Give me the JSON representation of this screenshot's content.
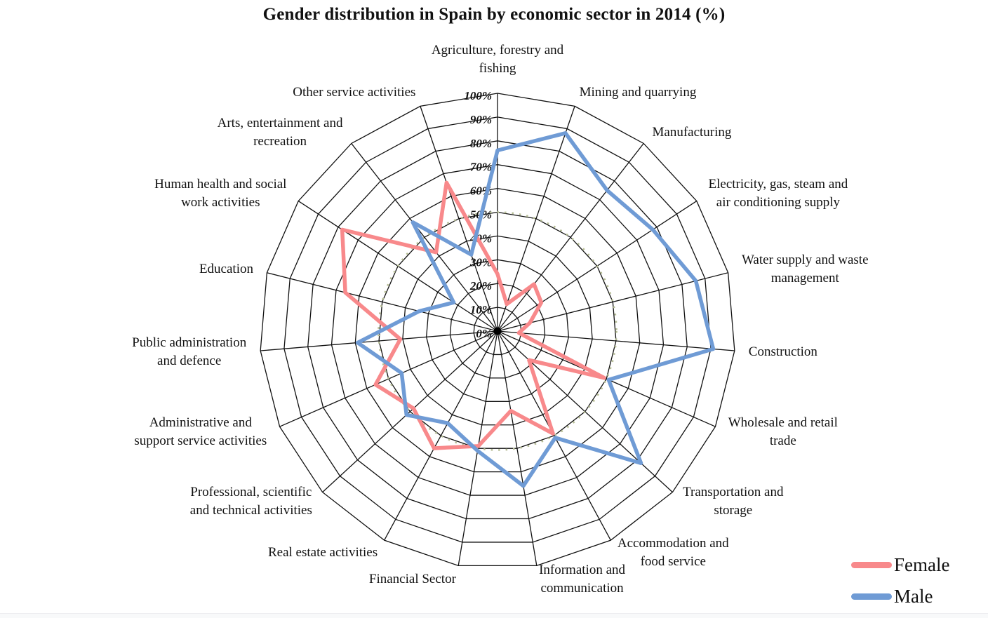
{
  "chart_data": {
    "type": "radar",
    "title": "Gender distribution in Spain by economic sector in 2014 (%)",
    "axis": {
      "min": 0,
      "max": 100,
      "step": 10,
      "tick_labels": [
        "0%",
        "10%",
        "20%",
        "30%",
        "40%",
        "50%",
        "60%",
        "70%",
        "80%",
        "90%",
        "100%"
      ],
      "reference_circle_pct": 50,
      "grid": "polygon-web"
    },
    "categories": [
      {
        "label_lines": [
          "Agriculture, forestry and",
          "fishing"
        ]
      },
      {
        "label_lines": [
          "Mining and quarrying"
        ]
      },
      {
        "label_lines": [
          "Manufacturing"
        ]
      },
      {
        "label_lines": [
          "Electricity, gas, steam and",
          "air conditioning supply"
        ]
      },
      {
        "label_lines": [
          "Water supply and waste",
          "management"
        ]
      },
      {
        "label_lines": [
          "Construction"
        ]
      },
      {
        "label_lines": [
          "Wholesale and retail",
          "trade"
        ]
      },
      {
        "label_lines": [
          "Transportation and",
          "storage"
        ]
      },
      {
        "label_lines": [
          "Accommodation and",
          "food service"
        ]
      },
      {
        "label_lines": [
          "Information and",
          "communication"
        ]
      },
      {
        "label_lines": [
          "Financial Sector"
        ]
      },
      {
        "label_lines": [
          "Real estate activities"
        ]
      },
      {
        "label_lines": [
          "Professional, scientific",
          "and technical activities"
        ]
      },
      {
        "label_lines": [
          "Administrative and",
          "support service activities"
        ]
      },
      {
        "label_lines": [
          "Public administration",
          "and defence"
        ]
      },
      {
        "label_lines": [
          "Education"
        ]
      },
      {
        "label_lines": [
          "Human health and social",
          "work activities"
        ]
      },
      {
        "label_lines": [
          "Arts, entertainment and",
          "recreation"
        ]
      },
      {
        "label_lines": [
          "Other service activities"
        ]
      }
    ],
    "series": [
      {
        "name": "Female",
        "color": "#F8898B",
        "values": [
          24,
          12,
          25,
          22,
          14,
          9,
          49,
          18,
          49,
          34,
          49,
          56,
          48,
          56,
          41,
          66,
          78,
          42,
          66
        ]
      },
      {
        "name": "Male",
        "color": "#6F9BD5",
        "values": [
          76,
          88,
          75,
          78,
          86,
          91,
          51,
          82,
          51,
          66,
          51,
          44,
          52,
          44,
          59,
          34,
          22,
          58,
          34
        ]
      }
    ],
    "legend_position": "bottom-right",
    "grid_color": "#111111",
    "reference_circle_color": "#B6BD95"
  }
}
